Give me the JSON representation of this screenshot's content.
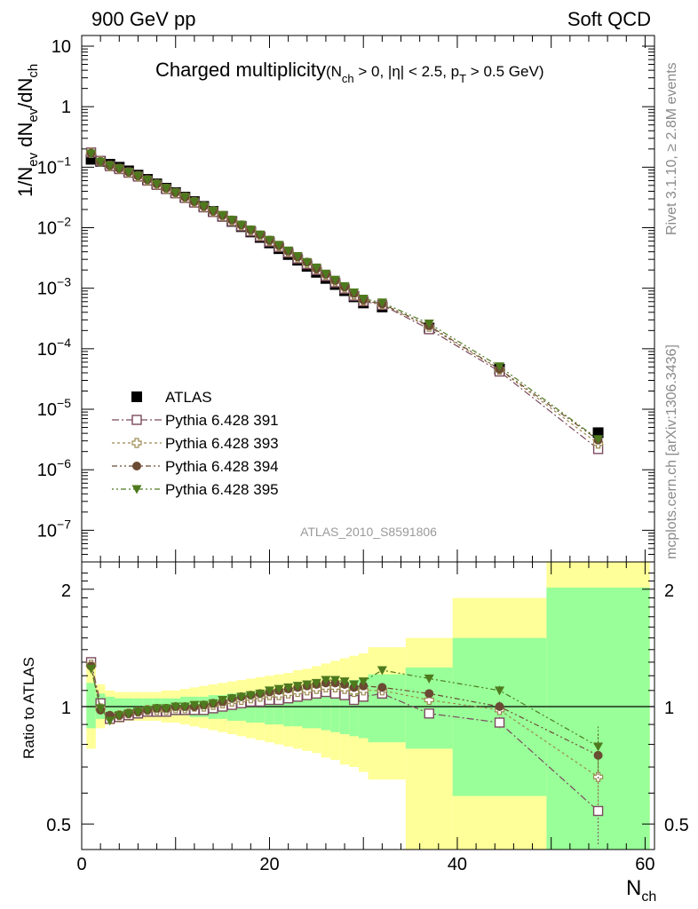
{
  "header": {
    "left": "900 GeV pp",
    "right": "Soft QCD"
  },
  "title": {
    "main": "Charged multiplicity",
    "sub_open": "(N",
    "sub_ch": "ch",
    "sub_eta": " > 0, |η| < 2.5, p",
    "sub_T": "T",
    "sub_close": " > 0.5 GeV)"
  },
  "side_labels": {
    "rivet": "Rivet 3.1.10, ≥ 2.8M events",
    "mcplots": "mcplots.cern.ch [arXiv:1306.3436]"
  },
  "analysis_tag": "ATLAS_2010_S8591806",
  "y_axis": {
    "main_a": "1/N",
    "main_b": "ev",
    "main_c": " dN",
    "main_d": "ev",
    "main_e": "/dN",
    "main_f": "ch",
    "ratio": "Ratio to ATLAS"
  },
  "x_axis": {
    "label_a": "N",
    "label_b": "ch"
  },
  "ticks": {
    "x": [
      "0",
      "20",
      "40",
      "60"
    ],
    "ratio": [
      "0.5",
      "1",
      "2"
    ]
  },
  "legend": [
    {
      "label": "ATLAS"
    },
    {
      "label": "Pythia 6.428 391"
    },
    {
      "label": "Pythia 6.428 393"
    },
    {
      "label": "Pythia 6.428 394"
    },
    {
      "label": "Pythia 6.428 395"
    }
  ],
  "colors": {
    "data": "#000000",
    "p391": "#7b4a5e",
    "p393": "#9b8a50",
    "p394": "#6b4a33",
    "p395": "#4e7a1e",
    "band_inner": "#99ff99",
    "band_outer": "#ffff99"
  },
  "chart_data": {
    "type": "scatter",
    "main": {
      "ylog": true,
      "xlim": [
        0,
        61
      ],
      "ylim": [
        3e-08,
        15
      ],
      "y_ticks": [
        {
          "v": 10,
          "t": "10"
        },
        {
          "v": 1,
          "t": "1"
        },
        {
          "v": 0.1,
          "m": "10",
          "e": "−1"
        },
        {
          "v": 0.01,
          "m": "10",
          "e": "−2"
        },
        {
          "v": 0.001,
          "m": "10",
          "e": "−3"
        },
        {
          "v": 0.0001,
          "m": "10",
          "e": "−4"
        },
        {
          "v": 1e-05,
          "m": "10",
          "e": "−5"
        },
        {
          "v": 1e-06,
          "m": "10",
          "e": "−6"
        },
        {
          "v": 1e-07,
          "m": "10",
          "e": "−7"
        }
      ],
      "x": [
        1,
        2,
        3,
        4,
        5,
        6,
        7,
        8,
        9,
        10,
        11,
        12,
        13,
        14,
        15,
        16,
        17,
        18,
        19,
        20,
        21,
        22,
        23,
        24,
        25,
        26,
        27,
        28,
        29,
        30,
        32,
        37,
        44.5,
        55
      ],
      "series": [
        {
          "name": "ATLAS",
          "values": [
            0.135,
            0.125,
            0.112,
            0.1,
            0.087,
            0.074,
            0.063,
            0.053,
            0.045,
            0.038,
            0.032,
            0.027,
            0.0225,
            0.0186,
            0.0154,
            0.0127,
            0.0104,
            0.0085,
            0.0069,
            0.0056,
            0.0045,
            0.0036,
            0.0029,
            0.0023,
            0.00183,
            0.00145,
            0.00115,
            0.00091,
            0.00072,
            0.00057,
            0.00049,
            0.00022,
            4.6e-05,
            4.1e-06
          ]
        },
        {
          "name": "Pythia 6.428 391",
          "values": [
            0.175,
            0.127,
            0.104,
            0.093,
            0.081,
            0.07,
            0.06,
            0.051,
            0.0435,
            0.037,
            0.031,
            0.026,
            0.0217,
            0.0182,
            0.0153,
            0.0128,
            0.0106,
            0.0087,
            0.0072,
            0.0059,
            0.0048,
            0.0039,
            0.0031,
            0.0025,
            0.002,
            0.00159,
            0.00125,
            0.00098,
            0.00075,
            0.00061,
            0.00053,
            0.00021,
            4.2e-05,
            2.2e-06
          ]
        },
        {
          "name": "Pythia 6.428 393",
          "values": [
            0.172,
            0.125,
            0.105,
            0.094,
            0.082,
            0.071,
            0.061,
            0.052,
            0.044,
            0.0375,
            0.0315,
            0.0265,
            0.0222,
            0.0186,
            0.0157,
            0.0131,
            0.0109,
            0.009,
            0.0074,
            0.0061,
            0.005,
            0.004,
            0.0032,
            0.0026,
            0.0021,
            0.00165,
            0.0013,
            0.00102,
            0.00079,
            0.00063,
            0.00054,
            0.00023,
            4.5e-05,
            2.7e-06
          ]
        },
        {
          "name": "Pythia 6.428 394",
          "values": [
            0.171,
            0.124,
            0.106,
            0.095,
            0.083,
            0.072,
            0.062,
            0.053,
            0.045,
            0.038,
            0.032,
            0.027,
            0.0226,
            0.0189,
            0.016,
            0.0134,
            0.0111,
            0.0092,
            0.0076,
            0.0062,
            0.0051,
            0.0041,
            0.0033,
            0.0027,
            0.0021,
            0.0017,
            0.00134,
            0.00105,
            0.00082,
            0.00064,
            0.00055,
            0.00024,
            4.6e-05,
            3.1e-06
          ]
        },
        {
          "name": "Pythia 6.428 395",
          "values": [
            0.168,
            0.123,
            0.107,
            0.095,
            0.083,
            0.072,
            0.062,
            0.053,
            0.045,
            0.038,
            0.032,
            0.027,
            0.0227,
            0.019,
            0.0161,
            0.0135,
            0.0112,
            0.0093,
            0.0077,
            0.0063,
            0.0052,
            0.0042,
            0.0034,
            0.0027,
            0.0022,
            0.00174,
            0.00138,
            0.00108,
            0.00085,
            0.00067,
            0.00058,
            0.00026,
            5.1e-05,
            3.2e-06
          ]
        }
      ]
    },
    "ratio": {
      "ylog": true,
      "xlim": [
        0,
        61
      ],
      "ylim": [
        0.43,
        2.35
      ],
      "reference": 1,
      "x": [
        1,
        2,
        3,
        4,
        5,
        6,
        7,
        8,
        9,
        10,
        11,
        12,
        13,
        14,
        15,
        16,
        17,
        18,
        19,
        20,
        21,
        22,
        23,
        24,
        25,
        26,
        27,
        28,
        29,
        30,
        32,
        37,
        44.5,
        55
      ],
      "series": [
        {
          "name": "Pythia 6.428 391",
          "values": [
            1.3,
            1.02,
            0.93,
            0.94,
            0.95,
            0.96,
            0.97,
            0.97,
            0.97,
            0.98,
            0.98,
            0.98,
            0.98,
            0.99,
            1.0,
            1.01,
            1.02,
            1.03,
            1.03,
            1.04,
            1.04,
            1.05,
            1.06,
            1.07,
            1.08,
            1.09,
            1.08,
            1.07,
            1.04,
            1.06,
            1.08,
            0.96,
            0.91,
            0.54
          ],
          "errors": [
            0,
            0,
            0,
            0,
            0,
            0,
            0,
            0,
            0,
            0,
            0,
            0,
            0,
            0,
            0,
            0,
            0,
            0,
            0,
            0,
            0,
            0,
            0,
            0,
            0,
            0,
            0,
            0,
            0,
            0,
            0,
            0.02,
            0.03,
            0.1
          ]
        },
        {
          "name": "Pythia 6.428 393",
          "values": [
            1.28,
            0.99,
            0.94,
            0.95,
            0.96,
            0.97,
            0.98,
            0.98,
            0.98,
            0.99,
            0.99,
            1.0,
            1.0,
            1.01,
            1.02,
            1.03,
            1.04,
            1.05,
            1.06,
            1.07,
            1.07,
            1.08,
            1.09,
            1.1,
            1.11,
            1.12,
            1.12,
            1.11,
            1.09,
            1.1,
            1.1,
            1.04,
            0.98,
            0.66
          ],
          "errors": [
            0,
            0,
            0,
            0,
            0,
            0,
            0,
            0,
            0,
            0,
            0,
            0,
            0,
            0,
            0,
            0,
            0,
            0,
            0,
            0,
            0,
            0,
            0,
            0,
            0,
            0,
            0,
            0,
            0,
            0,
            0,
            0.02,
            0.03,
            0.1
          ]
        },
        {
          "name": "Pythia 6.428 394",
          "values": [
            1.27,
            0.98,
            0.95,
            0.95,
            0.96,
            0.97,
            0.98,
            0.99,
            0.99,
            1.0,
            1.0,
            1.0,
            1.01,
            1.02,
            1.03,
            1.05,
            1.06,
            1.07,
            1.08,
            1.09,
            1.1,
            1.11,
            1.12,
            1.13,
            1.14,
            1.15,
            1.15,
            1.14,
            1.12,
            1.13,
            1.12,
            1.08,
            1.0,
            0.75
          ],
          "errors": [
            0,
            0,
            0,
            0,
            0,
            0,
            0,
            0,
            0,
            0,
            0,
            0,
            0,
            0,
            0,
            0,
            0,
            0,
            0,
            0,
            0,
            0,
            0,
            0,
            0,
            0,
            0,
            0,
            0,
            0,
            0,
            0.02,
            0.03,
            0.1
          ]
        },
        {
          "name": "Pythia 6.428 395",
          "values": [
            1.25,
            0.99,
            0.92,
            0.95,
            0.96,
            0.97,
            0.98,
            0.99,
            0.99,
            1.0,
            1.0,
            1.01,
            1.01,
            1.02,
            1.04,
            1.05,
            1.06,
            1.07,
            1.08,
            1.1,
            1.11,
            1.12,
            1.13,
            1.14,
            1.15,
            1.17,
            1.17,
            1.16,
            1.14,
            1.16,
            1.24,
            1.18,
            1.1,
            0.79
          ],
          "errors": [
            0,
            0,
            0,
            0,
            0,
            0,
            0,
            0,
            0,
            0,
            0,
            0,
            0,
            0,
            0,
            0,
            0,
            0,
            0,
            0,
            0,
            0,
            0,
            0,
            0,
            0,
            0,
            0,
            0,
            0,
            0,
            0.02,
            0.03,
            0.1
          ]
        }
      ],
      "bands": [
        {
          "x0": 0.5,
          "x1": 1.5,
          "outer": [
            0.78,
            1.32
          ],
          "inner": [
            0.88,
            1.15
          ]
        },
        {
          "x0": 1.5,
          "x1": 2.5,
          "outer": [
            0.88,
            1.14
          ],
          "inner": [
            0.93,
            1.08
          ]
        },
        {
          "x0": 2.5,
          "x1": 3.5,
          "outer": [
            0.9,
            1.1
          ],
          "inner": [
            0.95,
            1.06
          ]
        },
        {
          "x0": 3.5,
          "x1": 4.5,
          "outer": [
            0.91,
            1.09
          ],
          "inner": [
            0.95,
            1.05
          ]
        },
        {
          "x0": 4.5,
          "x1": 5.5,
          "outer": [
            0.92,
            1.09
          ],
          "inner": [
            0.96,
            1.05
          ]
        },
        {
          "x0": 5.5,
          "x1": 6.5,
          "outer": [
            0.92,
            1.09
          ],
          "inner": [
            0.96,
            1.05
          ]
        },
        {
          "x0": 6.5,
          "x1": 7.5,
          "outer": [
            0.92,
            1.09
          ],
          "inner": [
            0.96,
            1.05
          ]
        },
        {
          "x0": 7.5,
          "x1": 8.5,
          "outer": [
            0.92,
            1.09
          ],
          "inner": [
            0.96,
            1.05
          ]
        },
        {
          "x0": 8.5,
          "x1": 9.5,
          "outer": [
            0.91,
            1.1
          ],
          "inner": [
            0.95,
            1.05
          ]
        },
        {
          "x0": 9.5,
          "x1": 10.5,
          "outer": [
            0.91,
            1.1
          ],
          "inner": [
            0.95,
            1.05
          ]
        },
        {
          "x0": 10.5,
          "x1": 11.5,
          "outer": [
            0.9,
            1.11
          ],
          "inner": [
            0.95,
            1.06
          ]
        },
        {
          "x0": 11.5,
          "x1": 12.5,
          "outer": [
            0.89,
            1.12
          ],
          "inner": [
            0.94,
            1.06
          ]
        },
        {
          "x0": 12.5,
          "x1": 13.5,
          "outer": [
            0.88,
            1.13
          ],
          "inner": [
            0.94,
            1.06
          ]
        },
        {
          "x0": 13.5,
          "x1": 14.5,
          "outer": [
            0.87,
            1.14
          ],
          "inner": [
            0.93,
            1.07
          ]
        },
        {
          "x0": 14.5,
          "x1": 15.5,
          "outer": [
            0.86,
            1.15
          ],
          "inner": [
            0.93,
            1.07
          ]
        },
        {
          "x0": 15.5,
          "x1": 16.5,
          "outer": [
            0.85,
            1.16
          ],
          "inner": [
            0.92,
            1.08
          ]
        },
        {
          "x0": 16.5,
          "x1": 17.5,
          "outer": [
            0.84,
            1.17
          ],
          "inner": [
            0.92,
            1.08
          ]
        },
        {
          "x0": 17.5,
          "x1": 18.5,
          "outer": [
            0.83,
            1.18
          ],
          "inner": [
            0.91,
            1.09
          ]
        },
        {
          "x0": 18.5,
          "x1": 19.5,
          "outer": [
            0.82,
            1.19
          ],
          "inner": [
            0.91,
            1.09
          ]
        },
        {
          "x0": 19.5,
          "x1": 20.5,
          "outer": [
            0.81,
            1.2
          ],
          "inner": [
            0.9,
            1.1
          ]
        },
        {
          "x0": 20.5,
          "x1": 21.5,
          "outer": [
            0.8,
            1.21
          ],
          "inner": [
            0.9,
            1.1
          ]
        },
        {
          "x0": 21.5,
          "x1": 22.5,
          "outer": [
            0.79,
            1.22
          ],
          "inner": [
            0.89,
            1.11
          ]
        },
        {
          "x0": 22.5,
          "x1": 23.5,
          "outer": [
            0.78,
            1.24
          ],
          "inner": [
            0.89,
            1.12
          ]
        },
        {
          "x0": 23.5,
          "x1": 24.5,
          "outer": [
            0.77,
            1.25
          ],
          "inner": [
            0.88,
            1.12
          ]
        },
        {
          "x0": 24.5,
          "x1": 25.5,
          "outer": [
            0.76,
            1.27
          ],
          "inner": [
            0.88,
            1.13
          ]
        },
        {
          "x0": 25.5,
          "x1": 26.5,
          "outer": [
            0.74,
            1.29
          ],
          "inner": [
            0.87,
            1.14
          ]
        },
        {
          "x0": 26.5,
          "x1": 27.5,
          "outer": [
            0.73,
            1.31
          ],
          "inner": [
            0.86,
            1.15
          ]
        },
        {
          "x0": 27.5,
          "x1": 28.5,
          "outer": [
            0.71,
            1.33
          ],
          "inner": [
            0.85,
            1.16
          ]
        },
        {
          "x0": 28.5,
          "x1": 29.5,
          "outer": [
            0.7,
            1.35
          ],
          "inner": [
            0.84,
            1.17
          ]
        },
        {
          "x0": 29.5,
          "x1": 30.5,
          "outer": [
            0.68,
            1.37
          ],
          "inner": [
            0.83,
            1.18
          ]
        },
        {
          "x0": 30.5,
          "x1": 34.5,
          "outer": [
            0.65,
            1.42
          ],
          "inner": [
            0.81,
            1.21
          ]
        },
        {
          "x0": 34.5,
          "x1": 39.5,
          "outer": [
            0.4,
            1.5
          ],
          "inner": [
            0.78,
            1.26
          ]
        },
        {
          "x0": 39.5,
          "x1": 49.5,
          "outer": [
            0.4,
            1.9
          ],
          "inner": [
            0.59,
            1.5
          ]
        },
        {
          "x0": 49.5,
          "x1": 60.5,
          "outer": [
            0.4,
            2.6
          ],
          "inner": [
            0.4,
            2.02
          ]
        }
      ]
    }
  }
}
